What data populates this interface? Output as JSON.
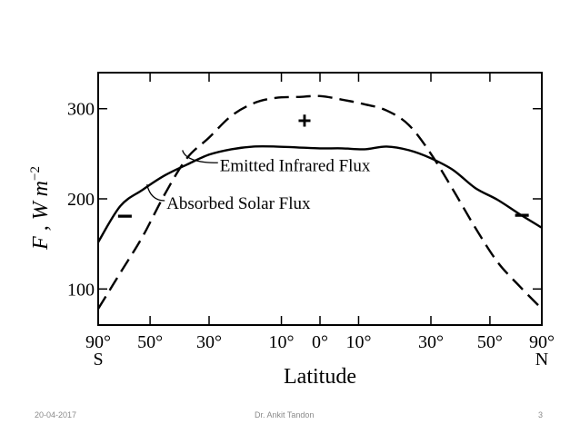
{
  "chart_data": {
    "type": "line",
    "title": "",
    "ylabel_prefix": "F , W m",
    "ylabel_exp": "−2",
    "xlabel": "Latitude",
    "x_units": "sin(latitude)",
    "xlim": [
      -1,
      1
    ],
    "ylim": [
      60,
      340
    ],
    "yticks": [
      100,
      200,
      300
    ],
    "ytick_labels": [
      "100",
      "200",
      "300"
    ],
    "xticks": [
      -1,
      -0.766,
      -0.5,
      -0.174,
      0,
      0.174,
      0.5,
      0.766,
      1
    ],
    "xtick_labels": [
      "90°",
      "50°",
      "30°",
      "10°",
      "0°",
      "10°",
      "30°",
      "50°",
      "90°"
    ],
    "pole_labels": {
      "south": "S",
      "north": "N"
    },
    "series": [
      {
        "name": "Emitted Infrared Flux",
        "style": "solid",
        "x": [
          -1,
          -0.9,
          -0.8,
          -0.7,
          -0.6,
          -0.5,
          -0.4,
          -0.3,
          -0.2,
          -0.1,
          0,
          0.1,
          0.2,
          0.3,
          0.4,
          0.5,
          0.6,
          0.7,
          0.8,
          0.9,
          1
        ],
        "y": [
          152,
          192,
          210,
          226,
          238,
          249,
          255,
          258,
          258,
          257,
          256,
          256,
          255,
          258,
          254,
          245,
          232,
          212,
          199,
          183,
          168
        ]
      },
      {
        "name": "Absorbed Solar Flux",
        "style": "dashed",
        "x": [
          -1,
          -0.9,
          -0.8,
          -0.7,
          -0.6,
          -0.5,
          -0.4,
          -0.3,
          -0.2,
          -0.1,
          0,
          0.1,
          0.2,
          0.3,
          0.4,
          0.5,
          0.6,
          0.7,
          0.8,
          0.9,
          1
        ],
        "y": [
          78,
          118,
          158,
          205,
          245,
          268,
          292,
          306,
          312,
          313,
          314,
          310,
          305,
          298,
          282,
          250,
          210,
          168,
          130,
          103,
          78
        ]
      }
    ],
    "annotations": [
      {
        "text": "Emitted Infrared Flux",
        "x": -0.46,
        "y": 238
      },
      {
        "text": "Absorbed Solar Flux",
        "x": -0.7,
        "y": 196
      }
    ],
    "signs": [
      {
        "text": "+",
        "x": -0.07,
        "y": 287
      },
      {
        "text": "−",
        "x": -0.88,
        "y": 180
      },
      {
        "text": "−",
        "x": 0.91,
        "y": 181
      }
    ]
  },
  "footer": {
    "date": "20-04-2017",
    "author": "Dr. Ankit Tandon",
    "page": "3"
  }
}
